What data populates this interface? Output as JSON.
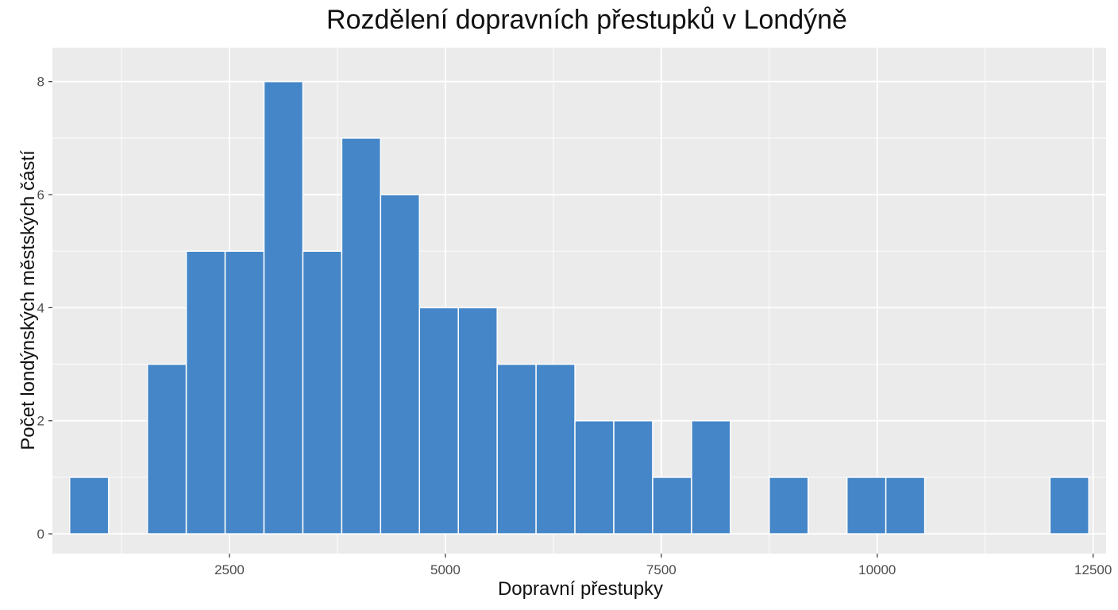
{
  "chart_data": {
    "type": "bar",
    "title": "Rozdělení dopravních přestupků v Londýně",
    "xlabel": "Dopravní přestupky",
    "ylabel": "Počet londýnských městských částí",
    "xlim": [
      450,
      12650
    ],
    "ylim": [
      -0.35,
      8.6
    ],
    "x_ticks": [
      2500,
      5000,
      7500,
      10000,
      12500
    ],
    "y_ticks": [
      0,
      2,
      4,
      6,
      8
    ],
    "bin_width": 450,
    "bins": [
      {
        "start": 650,
        "end": 1100,
        "count": 1
      },
      {
        "start": 1550,
        "end": 2000,
        "count": 3
      },
      {
        "start": 2000,
        "end": 2450,
        "count": 5
      },
      {
        "start": 2450,
        "end": 2900,
        "count": 5
      },
      {
        "start": 2900,
        "end": 3350,
        "count": 8
      },
      {
        "start": 3350,
        "end": 3800,
        "count": 5
      },
      {
        "start": 3800,
        "end": 4250,
        "count": 7
      },
      {
        "start": 4250,
        "end": 4700,
        "count": 6
      },
      {
        "start": 4700,
        "end": 5150,
        "count": 4
      },
      {
        "start": 5150,
        "end": 5600,
        "count": 4
      },
      {
        "start": 5600,
        "end": 6050,
        "count": 3
      },
      {
        "start": 6050,
        "end": 6500,
        "count": 3
      },
      {
        "start": 6500,
        "end": 6950,
        "count": 2
      },
      {
        "start": 6950,
        "end": 7400,
        "count": 2
      },
      {
        "start": 7400,
        "end": 7850,
        "count": 1
      },
      {
        "start": 7850,
        "end": 8300,
        "count": 2
      },
      {
        "start": 8750,
        "end": 9200,
        "count": 1
      },
      {
        "start": 9650,
        "end": 10100,
        "count": 1
      },
      {
        "start": 10100,
        "end": 10550,
        "count": 1
      },
      {
        "start": 12000,
        "end": 12450,
        "count": 1
      }
    ],
    "grid": true,
    "legend": "none",
    "colors": {
      "bar_fill": "#4486c8",
      "bar_stroke": "#ffffff",
      "panel_bg": "#ebebeb",
      "grid": "#ffffff"
    }
  }
}
